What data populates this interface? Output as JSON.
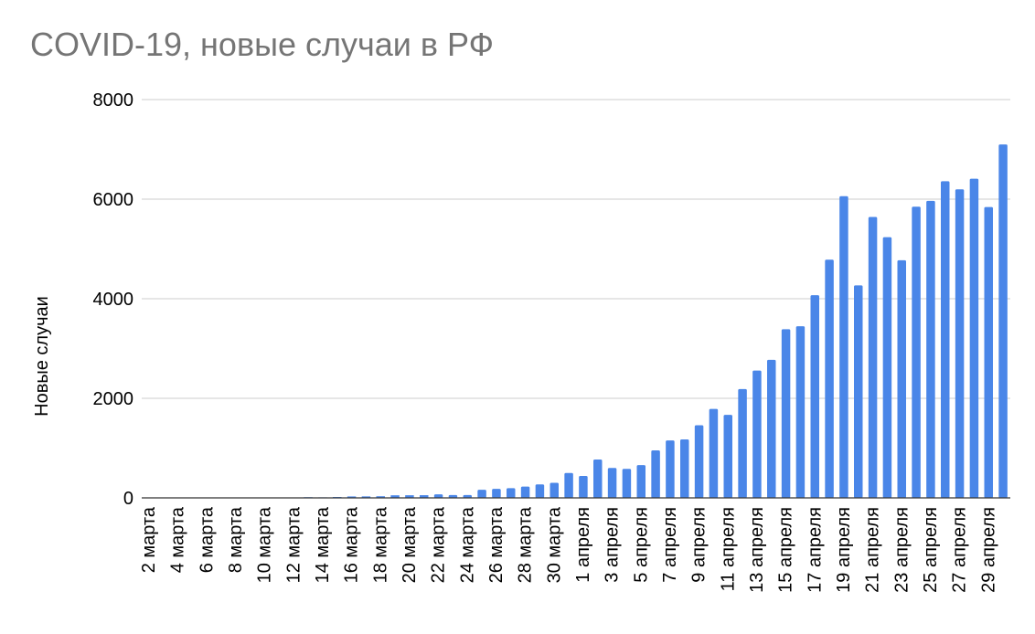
{
  "chart_data": {
    "type": "bar",
    "title": "COVID-19, новые случаи в РФ",
    "xlabel": "",
    "ylabel": "Новые случаи",
    "ylim": [
      0,
      8000
    ],
    "yticks": [
      0,
      2000,
      4000,
      6000,
      8000
    ],
    "grid": true,
    "bar_color": "#4a86e8",
    "tick_labels": [
      "2 марта",
      "4 марта",
      "6 марта",
      "8 марта",
      "10 марта",
      "12 марта",
      "14 марта",
      "16 марта",
      "18 марта",
      "20 марта",
      "22 марта",
      "24 марта",
      "26 марта",
      "28 марта",
      "30 марта",
      "1 апреля",
      "3 апреля",
      "5 апреля",
      "7 апреля",
      "9 апреля",
      "11 апреля",
      "13 апреля",
      "15 апреля",
      "17 апреля",
      "19 апреля",
      "21 апреля",
      "23 апреля",
      "25 апреля",
      "27 апреля",
      "29 апреля"
    ],
    "categories": [
      "2 марта",
      "3 марта",
      "4 марта",
      "5 марта",
      "6 марта",
      "7 марта",
      "8 марта",
      "9 марта",
      "10 марта",
      "11 марта",
      "12 марта",
      "13 марта",
      "14 марта",
      "15 марта",
      "16 марта",
      "17 марта",
      "18 марта",
      "19 марта",
      "20 марта",
      "21 марта",
      "22 марта",
      "23 марта",
      "24 марта",
      "25 марта",
      "26 марта",
      "27 марта",
      "28 марта",
      "29 марта",
      "30 марта",
      "31 марта",
      "1 апреля",
      "2 апреля",
      "3 апреля",
      "4 апреля",
      "5 апреля",
      "6 апреля",
      "7 апреля",
      "8 апреля",
      "9 апреля",
      "10 апреля",
      "11 апреля",
      "12 апреля",
      "13 апреля",
      "14 апреля",
      "15 апреля",
      "16 апреля",
      "17 апреля",
      "18 апреля",
      "19 апреля",
      "20 апреля",
      "21 апреля",
      "22 апреля",
      "23 апреля",
      "24 апреля",
      "25 апреля",
      "26 апреля",
      "27 апреля",
      "28 апреля",
      "29 апреля",
      "30 апреля"
    ],
    "values": [
      1,
      0,
      1,
      0,
      1,
      2,
      4,
      0,
      3,
      8,
      6,
      14,
      11,
      18,
      29,
      30,
      33,
      52,
      53,
      54,
      71,
      57,
      57,
      163,
      182,
      196,
      228,
      270,
      302,
      501,
      440,
      771,
      601,
      582,
      658,
      954,
      1154,
      1175,
      1459,
      1786,
      1667,
      2186,
      2558,
      2774,
      3388,
      3448,
      4070,
      4785,
      6060,
      4268,
      5642,
      5236,
      4774,
      5849,
      5966,
      6361,
      6198,
      6411,
      5841,
      7099
    ]
  }
}
